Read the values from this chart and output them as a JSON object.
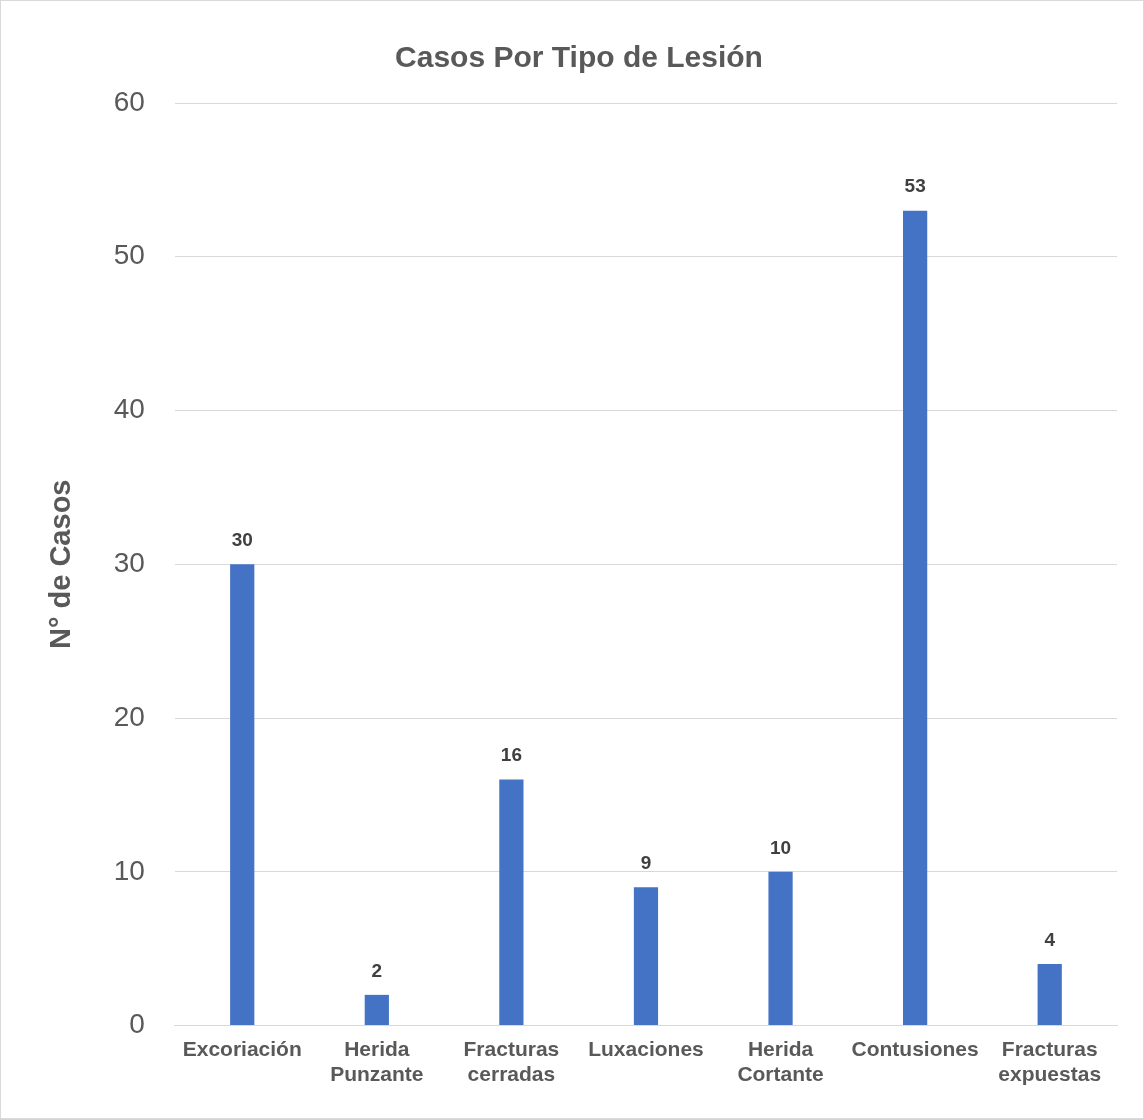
{
  "chart_data": {
    "type": "bar",
    "title": "Casos Por Tipo de Lesión",
    "ylabel": "N° de Casos",
    "categories": [
      "Excoriación",
      "Herida Punzante",
      "Fracturas cerradas",
      "Luxaciones",
      "Herida Cortante",
      "Contusiones",
      "Fracturas expuestas"
    ],
    "values": [
      30,
      2,
      16,
      9,
      10,
      53,
      4
    ],
    "color": "#4472c4",
    "ylim": [
      0,
      60
    ],
    "yticks": [
      0,
      10,
      20,
      30,
      40,
      50,
      60
    ],
    "grid": "y",
    "data_labels": true,
    "legend": false
  }
}
